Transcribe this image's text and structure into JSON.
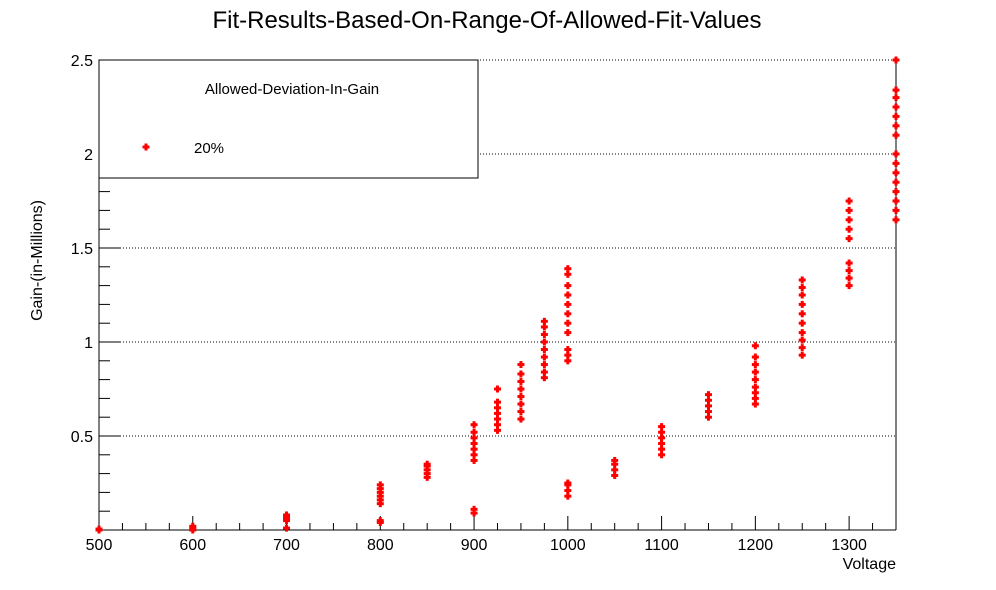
{
  "chart_data": {
    "type": "scatter",
    "title": "Fit-Results-Based-On-Range-Of-Allowed-Fit-Values",
    "xlabel": "Voltage",
    "ylabel": "Gain-(in-Millions)",
    "xlim": [
      500,
      1350
    ],
    "ylim": [
      0,
      2.5
    ],
    "x_ticks": [
      500,
      600,
      700,
      800,
      900,
      1000,
      1100,
      1200,
      1300
    ],
    "x_tick_labels": [
      "500",
      "600",
      "700",
      "800",
      "900",
      "1000",
      "1100",
      "1200",
      "1300"
    ],
    "y_ticks": [
      0.5,
      1,
      1.5,
      2,
      2.5
    ],
    "y_tick_labels": [
      "0.5",
      "1",
      "1.5",
      "2",
      "2.5"
    ],
    "grid": "horizontal-dotted",
    "legend": {
      "header": "Allowed-Deviation-In-Gain",
      "position": "top-left",
      "entries": [
        "20%"
      ]
    },
    "series": [
      {
        "name": "20%",
        "color": "#ff0000",
        "marker": "plus",
        "points": [
          [
            500,
            0.0
          ],
          [
            500,
            0.005
          ],
          [
            600,
            0.0
          ],
          [
            600,
            0.01
          ],
          [
            600,
            0.02
          ],
          [
            700,
            0.01
          ],
          [
            700,
            0.05
          ],
          [
            700,
            0.06
          ],
          [
            700,
            0.07
          ],
          [
            700,
            0.08
          ],
          [
            800,
            0.04
          ],
          [
            800,
            0.05
          ],
          [
            800,
            0.14
          ],
          [
            800,
            0.16
          ],
          [
            800,
            0.18
          ],
          [
            800,
            0.2
          ],
          [
            800,
            0.22
          ],
          [
            800,
            0.24
          ],
          [
            850,
            0.28
          ],
          [
            850,
            0.3
          ],
          [
            850,
            0.32
          ],
          [
            850,
            0.34
          ],
          [
            850,
            0.35
          ],
          [
            900,
            0.09
          ],
          [
            900,
            0.11
          ],
          [
            900,
            0.37
          ],
          [
            900,
            0.4
          ],
          [
            900,
            0.43
          ],
          [
            900,
            0.46
          ],
          [
            900,
            0.49
          ],
          [
            900,
            0.52
          ],
          [
            900,
            0.56
          ],
          [
            925,
            0.53
          ],
          [
            925,
            0.56
          ],
          [
            925,
            0.59
          ],
          [
            925,
            0.62
          ],
          [
            925,
            0.65
          ],
          [
            925,
            0.68
          ],
          [
            925,
            0.75
          ],
          [
            950,
            0.59
          ],
          [
            950,
            0.63
          ],
          [
            950,
            0.67
          ],
          [
            950,
            0.71
          ],
          [
            950,
            0.75
          ],
          [
            950,
            0.79
          ],
          [
            950,
            0.83
          ],
          [
            950,
            0.88
          ],
          [
            975,
            0.81
          ],
          [
            975,
            0.84
          ],
          [
            975,
            0.88
          ],
          [
            975,
            0.92
          ],
          [
            975,
            0.96
          ],
          [
            975,
            1.0
          ],
          [
            975,
            1.04
          ],
          [
            975,
            1.08
          ],
          [
            975,
            1.11
          ],
          [
            1000,
            0.18
          ],
          [
            1000,
            0.21
          ],
          [
            1000,
            0.24
          ],
          [
            1000,
            0.25
          ],
          [
            1000,
            0.9
          ],
          [
            1000,
            0.93
          ],
          [
            1000,
            0.96
          ],
          [
            1000,
            1.05
          ],
          [
            1000,
            1.1
          ],
          [
            1000,
            1.15
          ],
          [
            1000,
            1.2
          ],
          [
            1000,
            1.25
          ],
          [
            1000,
            1.3
          ],
          [
            1000,
            1.36
          ],
          [
            1000,
            1.39
          ],
          [
            1050,
            0.29
          ],
          [
            1050,
            0.32
          ],
          [
            1050,
            0.35
          ],
          [
            1050,
            0.37
          ],
          [
            1100,
            0.4
          ],
          [
            1100,
            0.43
          ],
          [
            1100,
            0.46
          ],
          [
            1100,
            0.49
          ],
          [
            1100,
            0.52
          ],
          [
            1100,
            0.55
          ],
          [
            1150,
            0.6
          ],
          [
            1150,
            0.63
          ],
          [
            1150,
            0.66
          ],
          [
            1150,
            0.69
          ],
          [
            1150,
            0.72
          ],
          [
            1200,
            0.67
          ],
          [
            1200,
            0.7
          ],
          [
            1200,
            0.73
          ],
          [
            1200,
            0.76
          ],
          [
            1200,
            0.8
          ],
          [
            1200,
            0.84
          ],
          [
            1200,
            0.88
          ],
          [
            1200,
            0.92
          ],
          [
            1200,
            0.98
          ],
          [
            1250,
            0.93
          ],
          [
            1250,
            0.97
          ],
          [
            1250,
            1.01
          ],
          [
            1250,
            1.05
          ],
          [
            1250,
            1.1
          ],
          [
            1250,
            1.15
          ],
          [
            1250,
            1.2
          ],
          [
            1250,
            1.25
          ],
          [
            1250,
            1.29
          ],
          [
            1250,
            1.33
          ],
          [
            1300,
            1.3
          ],
          [
            1300,
            1.34
          ],
          [
            1300,
            1.38
          ],
          [
            1300,
            1.42
          ],
          [
            1300,
            1.55
          ],
          [
            1300,
            1.6
          ],
          [
            1300,
            1.65
          ],
          [
            1300,
            1.7
          ],
          [
            1300,
            1.75
          ],
          [
            1350,
            1.65
          ],
          [
            1350,
            1.7
          ],
          [
            1350,
            1.75
          ],
          [
            1350,
            1.8
          ],
          [
            1350,
            1.85
          ],
          [
            1350,
            1.9
          ],
          [
            1350,
            1.95
          ],
          [
            1350,
            2.0
          ],
          [
            1350,
            2.1
          ],
          [
            1350,
            2.15
          ],
          [
            1350,
            2.2
          ],
          [
            1350,
            2.25
          ],
          [
            1350,
            2.3
          ],
          [
            1350,
            2.34
          ],
          [
            1350,
            2.5
          ]
        ]
      }
    ]
  }
}
